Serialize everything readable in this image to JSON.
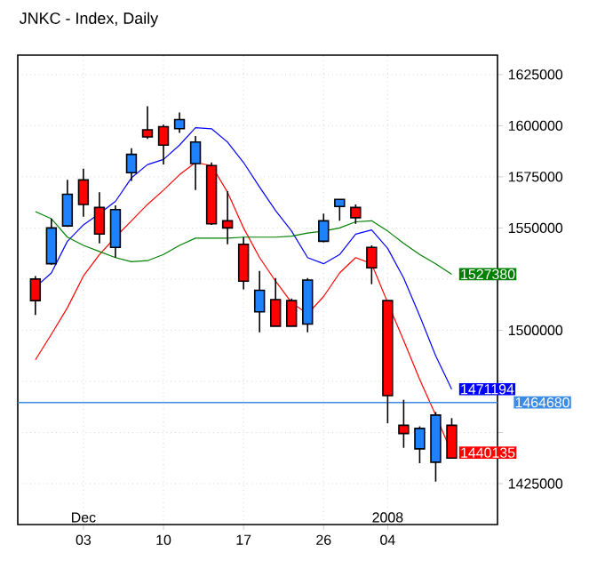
{
  "chart_data": {
    "type": "candlestick",
    "title": "JNKC - Index, Daily",
    "categories": [
      null,
      null,
      null,
      "03",
      null,
      null,
      null,
      null,
      "10",
      null,
      null,
      null,
      null,
      "17",
      null,
      null,
      null,
      null,
      "26",
      null,
      null,
      null,
      "04",
      null,
      null,
      null,
      null
    ],
    "ohlc": [
      [
        1525000,
        1526500,
        1507500,
        1514500
      ],
      [
        1532500,
        1554500,
        1532000,
        1550000
      ],
      [
        1551000,
        1573500,
        1550500,
        1566500
      ],
      [
        1573500,
        1579000,
        1555500,
        1561500
      ],
      [
        1560000,
        1567500,
        1542500,
        1547000
      ],
      [
        1540500,
        1561000,
        1535500,
        1559000
      ],
      [
        1577000,
        1589000,
        1573000,
        1586000
      ],
      [
        1598000,
        1609500,
        1593500,
        1594500
      ],
      [
        1599500,
        1600500,
        1581000,
        1590500
      ],
      [
        1598500,
        1606500,
        1596500,
        1603000
      ],
      [
        1581500,
        1595000,
        1568500,
        1592000
      ],
      [
        1580500,
        1582000,
        1551500,
        1552000
      ],
      [
        1553500,
        1568000,
        1542000,
        1550000
      ],
      [
        1542000,
        1545500,
        1520000,
        1524000
      ],
      [
        1509000,
        1529000,
        1499000,
        1519500
      ],
      [
        1515000,
        1525500,
        1502000,
        1502000
      ],
      [
        1514500,
        1515500,
        1502000,
        1502000
      ],
      [
        1503000,
        1525500,
        1499000,
        1524500
      ],
      [
        1543500,
        1557000,
        1543000,
        1553500
      ],
      [
        1560500,
        1564000,
        1553500,
        1564000
      ],
      [
        1560000,
        1561500,
        1552000,
        1555000
      ],
      [
        1540500,
        1541500,
        1522500,
        1530500
      ],
      [
        1514500,
        1514500,
        1454500,
        1468000
      ],
      [
        1453500,
        1466000,
        1442500,
        1449500
      ],
      [
        1442000,
        1453000,
        1435000,
        1452000
      ],
      [
        1435500,
        1460000,
        1426000,
        1458500
      ],
      [
        1453500,
        1457000,
        1437500,
        1437500
      ]
    ],
    "colors": [
      "#ff0000",
      "#1e82ff",
      "#1e82ff",
      "#ff0000",
      "#ff0000",
      "#1e82ff",
      "#1e82ff",
      "#ff0000",
      "#ff0000",
      "#1e82ff",
      "#1e82ff",
      "#ff0000",
      "#ff0000",
      "#ff0000",
      "#1e82ff",
      "#ff0000",
      "#ff0000",
      "#1e82ff",
      "#1e82ff",
      "#1e82ff",
      "#ff0000",
      "#ff0000",
      "#ff0000",
      "#ff0000",
      "#1e82ff",
      "#1e82ff",
      "#ff0000"
    ],
    "series": [
      {
        "type": "line",
        "color": "#ff0000",
        "values": [
          1485500,
          1498000,
          1511000,
          1526500,
          1537000,
          1545500,
          1553500,
          1561500,
          1568500,
          1576000,
          1582000,
          1580500,
          1567500,
          1550000,
          1535500,
          1524000,
          1513500,
          1508000,
          1516500,
          1528000,
          1535500,
          1532500,
          1513500,
          1495000,
          1476000,
          1458500,
          1440135
        ],
        "value_labels": [
          null,
          null,
          null,
          null,
          null,
          null,
          null,
          null,
          null,
          null,
          null,
          null,
          null,
          null,
          null,
          null,
          null,
          null,
          null,
          null,
          null,
          null,
          null,
          null,
          null,
          null,
          "1440135"
        ]
      },
      {
        "type": "line",
        "color": "#0000ff",
        "values": [
          1521000,
          1528000,
          1543500,
          1551500,
          1557000,
          1563000,
          1574500,
          1581000,
          1583500,
          1590500,
          1599000,
          1598500,
          1592000,
          1582000,
          1570000,
          1558500,
          1548500,
          1535500,
          1532500,
          1537000,
          1547000,
          1549000,
          1540000,
          1525500,
          1507000,
          1487500,
          1471194
        ],
        "value_labels": [
          null,
          null,
          null,
          null,
          null,
          null,
          null,
          null,
          null,
          null,
          null,
          null,
          null,
          null,
          null,
          null,
          null,
          null,
          null,
          null,
          null,
          null,
          null,
          null,
          null,
          null,
          "1471194"
        ]
      },
      {
        "type": "line",
        "color": "#008000",
        "values": [
          1558000,
          1554500,
          1545500,
          1541500,
          1538500,
          1535500,
          1533500,
          1534000,
          1537000,
          1541500,
          1545000,
          1545000,
          1545000,
          1545500,
          1545500,
          1545500,
          1546000,
          1547500,
          1548500,
          1550000,
          1553000,
          1553500,
          1548500,
          1542500,
          1537000,
          1532500,
          1527380
        ],
        "value_labels": [
          null,
          null,
          null,
          null,
          null,
          null,
          null,
          null,
          null,
          null,
          null,
          null,
          null,
          null,
          null,
          null,
          null,
          null,
          null,
          null,
          null,
          null,
          null,
          null,
          null,
          null,
          "1527380"
        ]
      }
    ],
    "ylim": [
      1405000,
      1634500
    ],
    "yticks": [
      1425000,
      {
        "value": 1450000,
        "label": null
      },
      {
        "value": 1475000,
        "label": null
      },
      1500000,
      {
        "value": 1525000,
        "label": null
      },
      1550000,
      1575000,
      1600000,
      1625000
    ],
    "ref_lines": [
      {
        "axis": "y",
        "value": 1464680,
        "label": "1464680",
        "color": "#3c8ce6"
      }
    ],
    "annotations": [
      "Dec",
      "2008"
    ],
    "grid": true
  }
}
